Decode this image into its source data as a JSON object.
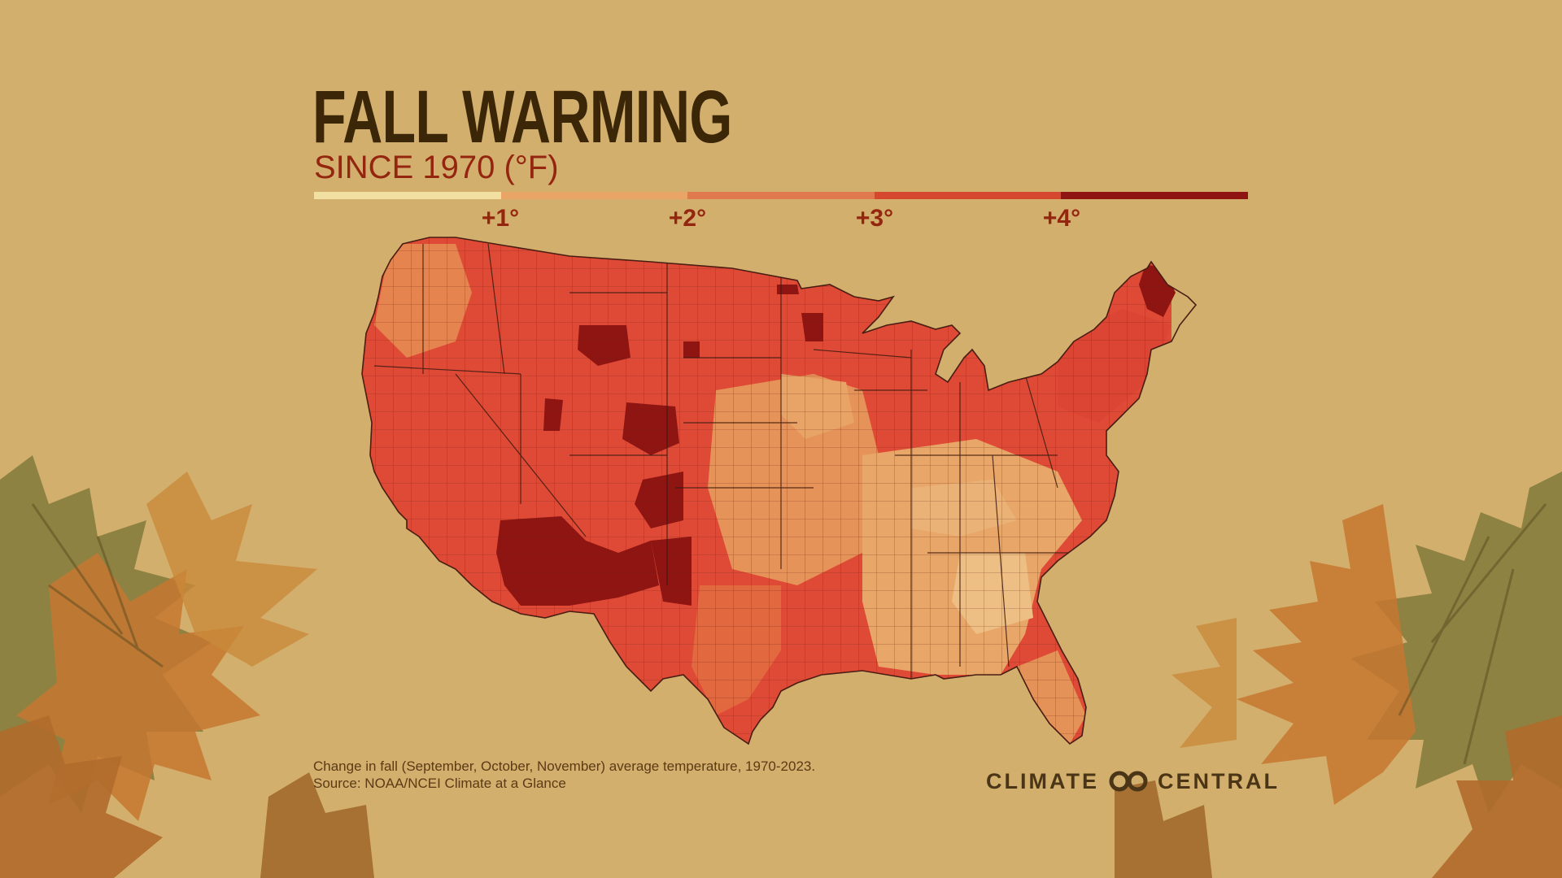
{
  "header": {
    "title": "FALL WARMING",
    "subtitle": "SINCE 1970 (°F)"
  },
  "legend": {
    "colors": [
      "#f2dfa2",
      "#e8a565",
      "#e07a4e",
      "#d6472f",
      "#8e1512"
    ],
    "ticks": [
      "+1°",
      "+2°",
      "+3°",
      "+4°"
    ]
  },
  "footer": {
    "note_line1": "Change in fall (September, October, November) average temperature, 1970-2023.",
    "note_line2": "Source: NOAA/NCEI Climate at a Glance",
    "brand_left": "CLIMATE",
    "brand_right": "CENTRAL",
    "brand_icon": "climate-central-logo-icon"
  },
  "map": {
    "region": "contiguous-united-states",
    "dominant_color": "#df4a36",
    "hot_spot_color": "#8e1512",
    "cool_color": "#e9ad6a"
  },
  "decor": {
    "leaf_colors": [
      "#8a8040",
      "#c7772e",
      "#a86b2a"
    ]
  }
}
